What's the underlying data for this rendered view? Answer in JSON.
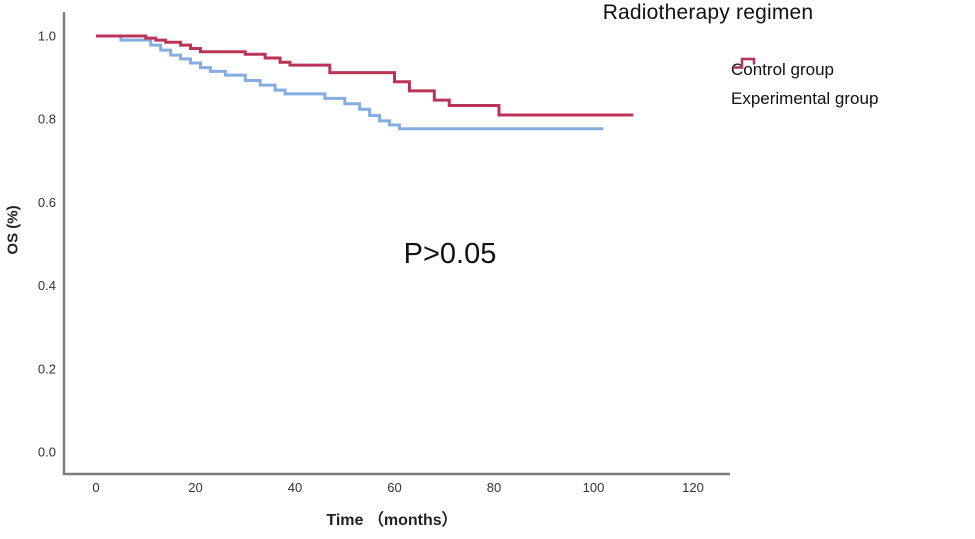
{
  "title": "Radiotherapy regimen",
  "annotation": "P>0.05",
  "axes": {
    "ylabel": "OS (%)",
    "xlabel": "Time （months）",
    "x_ticks": [
      "0",
      "20",
      "40",
      "60",
      "80",
      "100",
      "120"
    ],
    "y_ticks": [
      "0.0",
      "0.2",
      "0.4",
      "0.6",
      "0.8",
      "1.0"
    ]
  },
  "legend": {
    "title": "Radiotherapy regimen",
    "items": [
      {
        "label": "Control group",
        "color": "#84aee1",
        "icon": "step-line-icon"
      },
      {
        "label": "Experimental group",
        "color": "#bb3458",
        "icon": "step-line-icon"
      }
    ]
  },
  "colors": {
    "control": "#84aee1",
    "experimental": "#bb3458",
    "axis_spine": "#7d7d7d",
    "text": "#1a1a1a"
  },
  "chart_data": {
    "type": "line",
    "subtype": "kaplan-meier-step",
    "title": "Radiotherapy regimen",
    "xlabel": "Time （months）",
    "ylabel": "OS (%)",
    "xlim": [
      -6,
      127
    ],
    "ylim": [
      0.0,
      1.05
    ],
    "x_ticks": [
      0,
      20,
      40,
      60,
      80,
      100,
      120
    ],
    "y_ticks": [
      0.0,
      0.2,
      0.4,
      0.6,
      0.8,
      1.0
    ],
    "grid": false,
    "legend_position": "outside-top-right",
    "annotation": {
      "text": "P>0.05",
      "x_months": 70,
      "y_survival": 0.48
    },
    "series": [
      {
        "name": "Control group",
        "color": "#84aee1",
        "end_time": 102,
        "steps": [
          [
            0,
            1.0
          ],
          [
            5,
            0.99
          ],
          [
            11,
            0.978
          ],
          [
            13,
            0.966
          ],
          [
            15,
            0.954
          ],
          [
            17,
            0.945
          ],
          [
            19,
            0.935
          ],
          [
            21,
            0.924
          ],
          [
            23,
            0.915
          ],
          [
            26,
            0.906
          ],
          [
            30,
            0.893
          ],
          [
            33,
            0.882
          ],
          [
            36,
            0.87
          ],
          [
            38,
            0.861
          ],
          [
            46,
            0.85
          ],
          [
            50,
            0.837
          ],
          [
            53,
            0.824
          ],
          [
            55,
            0.809
          ],
          [
            57,
            0.796
          ],
          [
            59,
            0.786
          ],
          [
            61,
            0.777
          ]
        ]
      },
      {
        "name": "Experimental group",
        "color": "#bb3458",
        "end_time": 108,
        "steps": [
          [
            0,
            1.0
          ],
          [
            10,
            0.995
          ],
          [
            12,
            0.99
          ],
          [
            14,
            0.985
          ],
          [
            17,
            0.978
          ],
          [
            19,
            0.97
          ],
          [
            21,
            0.962
          ],
          [
            30,
            0.956
          ],
          [
            34,
            0.947
          ],
          [
            37,
            0.937
          ],
          [
            39,
            0.93
          ],
          [
            47,
            0.912
          ],
          [
            60,
            0.89
          ],
          [
            63,
            0.868
          ],
          [
            68,
            0.846
          ],
          [
            71,
            0.833
          ],
          [
            81,
            0.81
          ]
        ]
      }
    ]
  }
}
